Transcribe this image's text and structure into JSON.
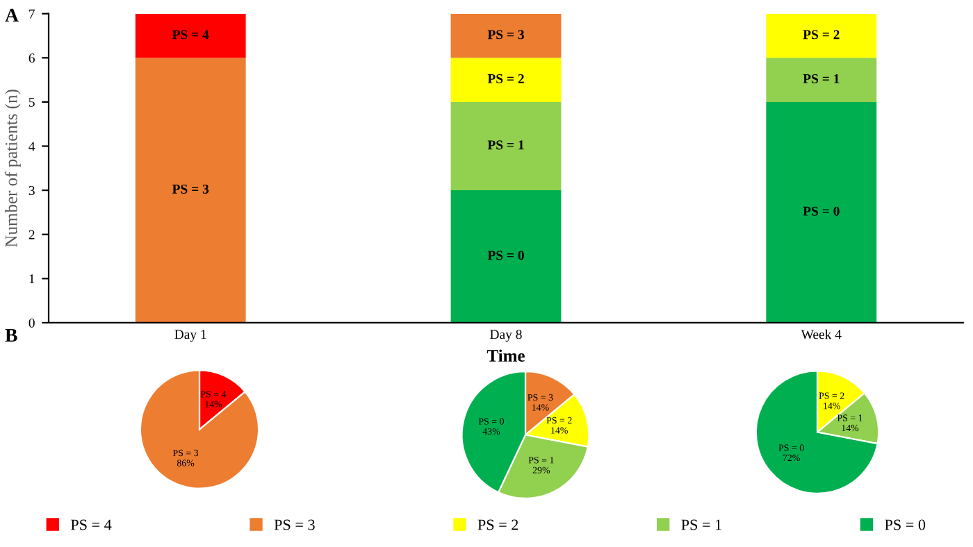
{
  "chart_data": [
    {
      "type": "bar",
      "stacked": true,
      "categories": [
        "Day 1",
        "Day 8",
        "Week 4"
      ],
      "xlabel": "Time",
      "ylabel": "Number of patients (n)",
      "ylim": [
        0,
        7
      ],
      "yticks": [
        0,
        1,
        2,
        3,
        4,
        5,
        6,
        7
      ],
      "grid": false,
      "legend": "bottom",
      "annotations": [
        "A",
        "B"
      ],
      "series": [
        {
          "name": "PS = 0",
          "color": "#00b050",
          "values": [
            null,
            3,
            5
          ]
        },
        {
          "name": "PS = 1",
          "color": "#92d050",
          "values": [
            null,
            2,
            1
          ]
        },
        {
          "name": "PS = 2",
          "color": "#ffff00",
          "values": [
            null,
            1,
            1
          ]
        },
        {
          "name": "PS = 3",
          "color": "#ed7d31",
          "values": [
            6,
            1,
            null
          ]
        },
        {
          "name": "PS = 4",
          "color": "#ff0000",
          "values": [
            1,
            null,
            null
          ]
        }
      ]
    },
    {
      "type": "pie",
      "categories": [
        "PS = 4",
        "PS = 3"
      ],
      "values": [
        14,
        86
      ],
      "value_labels": [
        "14%",
        "86%"
      ],
      "colors": [
        "#ff0000",
        "#ed7d31"
      ]
    },
    {
      "type": "pie",
      "categories": [
        "PS = 3",
        "PS = 2",
        "PS = 1",
        "PS = 0"
      ],
      "values": [
        14,
        14,
        29,
        43
      ],
      "value_labels": [
        "14%",
        "14%",
        "29%",
        "43%"
      ],
      "colors": [
        "#ed7d31",
        "#ffff00",
        "#92d050",
        "#00b050"
      ]
    },
    {
      "type": "pie",
      "categories": [
        "PS = 2",
        "PS = 1",
        "PS = 0"
      ],
      "values": [
        14,
        14,
        72
      ],
      "value_labels": [
        "14%",
        "14%",
        "72%"
      ],
      "colors": [
        "#ffff00",
        "#92d050",
        "#00b050"
      ]
    }
  ]
}
